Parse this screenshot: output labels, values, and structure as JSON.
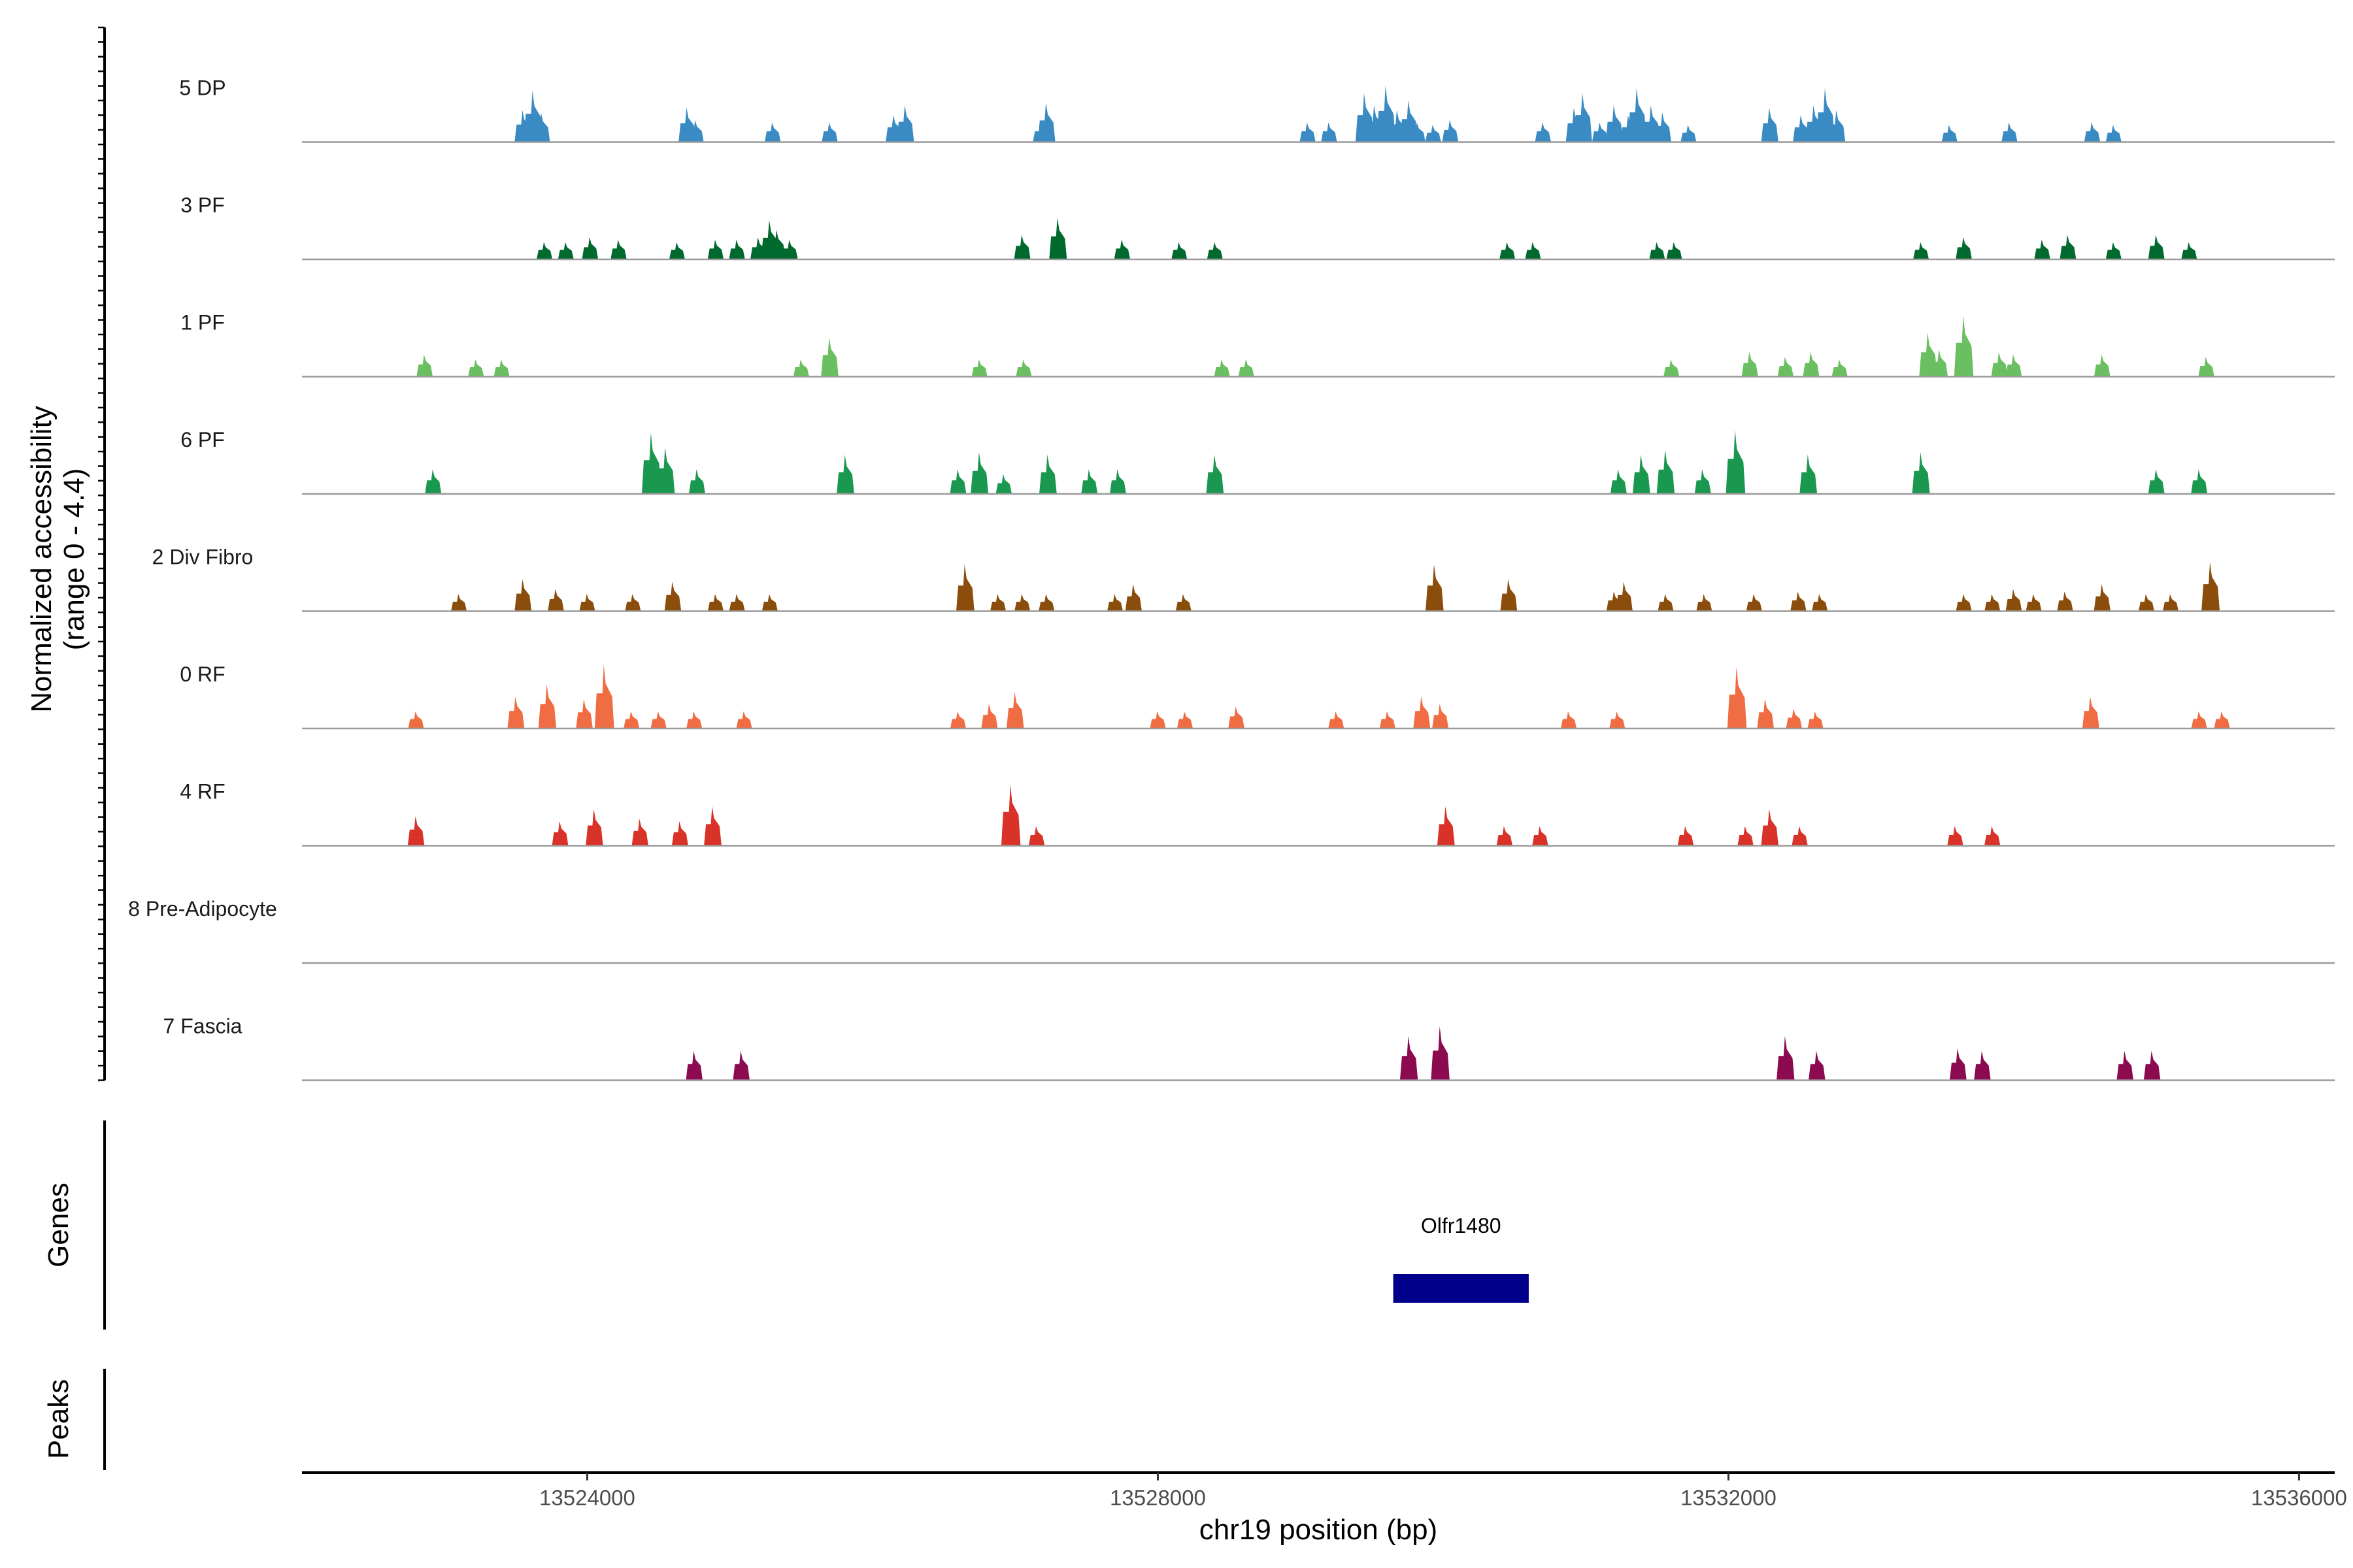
{
  "chart_data": {
    "type": "area",
    "title": "",
    "xlabel": "chr19 position (bp)",
    "ylabel_lines": [
      "Normalized accessibility",
      "(range 0 - 4.4)"
    ],
    "panel_labels": {
      "genes": "Genes",
      "peaks": "Peaks"
    },
    "xlim": [
      13522000,
      13536250
    ],
    "ylim": [
      0,
      4.4
    ],
    "x_ticks": [
      13524000,
      13528000,
      13532000,
      13536000
    ],
    "x_tick_labels": [
      "13524000",
      "13528000",
      "13532000",
      "13536000"
    ],
    "gene": {
      "name": "Olfr1480",
      "start": 13529650,
      "end": 13530600,
      "color": "#00008b"
    },
    "tracks": [
      {
        "name": "5 DP",
        "color": "#3a8bc4",
        "peaks": [
          [
            13523550,
            1.3
          ],
          [
            13523620,
            2.1
          ],
          [
            13523680,
            1.2
          ],
          [
            13524700,
            1.4
          ],
          [
            13524760,
            0.9
          ],
          [
            13525300,
            0.8
          ],
          [
            13525700,
            0.8
          ],
          [
            13526150,
            1.1
          ],
          [
            13526230,
            1.5
          ],
          [
            13527180,
            0.8
          ],
          [
            13527220,
            1.6
          ],
          [
            13529050,
            0.8
          ],
          [
            13529200,
            0.8
          ],
          [
            13529450,
            2.0
          ],
          [
            13529520,
            1.5
          ],
          [
            13529600,
            2.3
          ],
          [
            13529680,
            1.3
          ],
          [
            13529760,
            1.7
          ],
          [
            13529820,
            0.8
          ],
          [
            13529930,
            0.7
          ],
          [
            13530050,
            0.9
          ],
          [
            13530700,
            0.8
          ],
          [
            13530920,
            1.4
          ],
          [
            13530980,
            2.0
          ],
          [
            13531100,
            0.8
          ],
          [
            13531200,
            1.5
          ],
          [
            13531300,
            1.1
          ],
          [
            13531360,
            2.2
          ],
          [
            13531460,
            1.5
          ],
          [
            13531540,
            1.2
          ],
          [
            13531720,
            0.7
          ],
          [
            13532290,
            1.4
          ],
          [
            13532510,
            1.1
          ],
          [
            13532600,
            1.5
          ],
          [
            13532680,
            2.2
          ],
          [
            13532760,
            1.3
          ],
          [
            13533550,
            0.7
          ],
          [
            13533970,
            0.8
          ],
          [
            13534550,
            0.8
          ],
          [
            13534700,
            0.7
          ]
        ]
      },
      {
        "name": "3 PF",
        "color": "#00692e",
        "peaks": [
          [
            13523700,
            0.7
          ],
          [
            13523850,
            0.7
          ],
          [
            13524020,
            0.9
          ],
          [
            13524220,
            0.8
          ],
          [
            13524630,
            0.7
          ],
          [
            13524900,
            0.8
          ],
          [
            13525050,
            0.8
          ],
          [
            13525200,
            0.9
          ],
          [
            13525280,
            1.6
          ],
          [
            13525330,
            1.2
          ],
          [
            13525420,
            0.8
          ],
          [
            13527050,
            1.0
          ],
          [
            13527300,
            1.7
          ],
          [
            13527750,
            0.8
          ],
          [
            13528150,
            0.7
          ],
          [
            13528400,
            0.7
          ],
          [
            13530450,
            0.7
          ],
          [
            13530630,
            0.7
          ],
          [
            13531500,
            0.7
          ],
          [
            13531620,
            0.7
          ],
          [
            13533350,
            0.7
          ],
          [
            13533650,
            0.9
          ],
          [
            13534200,
            0.8
          ],
          [
            13534380,
            1.0
          ],
          [
            13534700,
            0.7
          ],
          [
            13535000,
            1.0
          ],
          [
            13535230,
            0.7
          ]
        ]
      },
      {
        "name": "1 PF",
        "color": "#6abf60",
        "peaks": [
          [
            13522860,
            0.9
          ],
          [
            13523220,
            0.7
          ],
          [
            13523400,
            0.7
          ],
          [
            13525500,
            0.7
          ],
          [
            13525700,
            1.6
          ],
          [
            13526750,
            0.7
          ],
          [
            13527060,
            0.7
          ],
          [
            13528450,
            0.7
          ],
          [
            13528620,
            0.7
          ],
          [
            13531600,
            0.7
          ],
          [
            13532150,
            1.0
          ],
          [
            13532400,
            0.8
          ],
          [
            13532580,
            1.0
          ],
          [
            13532780,
            0.7
          ],
          [
            13533400,
            1.8
          ],
          [
            13533480,
            1.1
          ],
          [
            13533650,
            2.5
          ],
          [
            13533900,
            1.0
          ],
          [
            13534000,
            0.9
          ],
          [
            13534620,
            0.9
          ],
          [
            13535350,
            0.8
          ]
        ]
      },
      {
        "name": "6 PF",
        "color": "#1b9850",
        "peaks": [
          [
            13522920,
            1.0
          ],
          [
            13524450,
            2.5
          ],
          [
            13524480,
            1.5
          ],
          [
            13524550,
            1.9
          ],
          [
            13524770,
            1.0
          ],
          [
            13525810,
            1.6
          ],
          [
            13526600,
            1.0
          ],
          [
            13526750,
            1.7
          ],
          [
            13526920,
            0.8
          ],
          [
            13527230,
            1.6
          ],
          [
            13527520,
            1.0
          ],
          [
            13527720,
            1.0
          ],
          [
            13528400,
            1.6
          ],
          [
            13531230,
            1.0
          ],
          [
            13531390,
            1.6
          ],
          [
            13531560,
            1.8
          ],
          [
            13531820,
            1.0
          ],
          [
            13532050,
            2.6
          ],
          [
            13532560,
            1.6
          ],
          [
            13533350,
            1.7
          ],
          [
            13535000,
            1.0
          ],
          [
            13535300,
            1.0
          ]
        ]
      },
      {
        "name": "2 Div Fibro",
        "color": "#8b4d0c",
        "peaks": [
          [
            13523100,
            0.7
          ],
          [
            13523550,
            1.3
          ],
          [
            13523780,
            0.9
          ],
          [
            13524000,
            0.7
          ],
          [
            13524320,
            0.7
          ],
          [
            13524600,
            1.2
          ],
          [
            13524900,
            0.7
          ],
          [
            13525050,
            0.7
          ],
          [
            13525280,
            0.7
          ],
          [
            13526650,
            1.9
          ],
          [
            13526880,
            0.7
          ],
          [
            13527050,
            0.7
          ],
          [
            13527220,
            0.7
          ],
          [
            13527700,
            0.7
          ],
          [
            13527830,
            1.1
          ],
          [
            13528180,
            0.7
          ],
          [
            13529940,
            1.9
          ],
          [
            13530460,
            1.3
          ],
          [
            13531200,
            0.8
          ],
          [
            13531270,
            1.2
          ],
          [
            13531560,
            0.7
          ],
          [
            13531830,
            0.7
          ],
          [
            13532180,
            0.7
          ],
          [
            13532490,
            0.8
          ],
          [
            13532640,
            0.7
          ],
          [
            13533650,
            0.7
          ],
          [
            13533850,
            0.7
          ],
          [
            13534000,
            0.9
          ],
          [
            13534140,
            0.7
          ],
          [
            13534360,
            0.8
          ],
          [
            13534620,
            1.1
          ],
          [
            13534930,
            0.7
          ],
          [
            13535100,
            0.7
          ],
          [
            13535380,
            2.0
          ]
        ]
      },
      {
        "name": "0 RF",
        "color": "#f06d43",
        "peaks": [
          [
            13522800,
            0.7
          ],
          [
            13523500,
            1.3
          ],
          [
            13523720,
            1.8
          ],
          [
            13523980,
            1.2
          ],
          [
            13524120,
            2.6
          ],
          [
            13524310,
            0.7
          ],
          [
            13524500,
            0.7
          ],
          [
            13524750,
            0.7
          ],
          [
            13525100,
            0.7
          ],
          [
            13526600,
            0.7
          ],
          [
            13526820,
            1.0
          ],
          [
            13527000,
            1.5
          ],
          [
            13528000,
            0.7
          ],
          [
            13528190,
            0.7
          ],
          [
            13528550,
            0.9
          ],
          [
            13529250,
            0.7
          ],
          [
            13529610,
            0.7
          ],
          [
            13529850,
            1.3
          ],
          [
            13529980,
            1.0
          ],
          [
            13530880,
            0.7
          ],
          [
            13531220,
            0.7
          ],
          [
            13532060,
            2.5
          ],
          [
            13532260,
            1.2
          ],
          [
            13532460,
            0.8
          ],
          [
            13532610,
            0.7
          ],
          [
            13534540,
            1.3
          ],
          [
            13535300,
            0.7
          ],
          [
            13535460,
            0.7
          ]
        ]
      },
      {
        "name": "4 RF",
        "color": "#d93228",
        "peaks": [
          [
            13522800,
            1.2
          ],
          [
            13523810,
            1.0
          ],
          [
            13524050,
            1.5
          ],
          [
            13524370,
            1.1
          ],
          [
            13524650,
            1.0
          ],
          [
            13524880,
            1.6
          ],
          [
            13526970,
            2.5
          ],
          [
            13527150,
            0.8
          ],
          [
            13530020,
            1.6
          ],
          [
            13530430,
            0.8
          ],
          [
            13530680,
            0.8
          ],
          [
            13531700,
            0.8
          ],
          [
            13532120,
            0.8
          ],
          [
            13532290,
            1.5
          ],
          [
            13532500,
            0.8
          ],
          [
            13533590,
            0.8
          ],
          [
            13533850,
            0.8
          ]
        ]
      },
      {
        "name": "8 Pre-Adipocyte",
        "color": "#c94f2a",
        "peaks": []
      },
      {
        "name": "7 Fascia",
        "color": "#8b0a50",
        "peaks": [
          [
            13524750,
            1.2
          ],
          [
            13525080,
            1.2
          ],
          [
            13529760,
            1.8
          ],
          [
            13529980,
            2.2
          ],
          [
            13532400,
            1.8
          ],
          [
            13532620,
            1.2
          ],
          [
            13533610,
            1.3
          ],
          [
            13533780,
            1.2
          ],
          [
            13534780,
            1.2
          ],
          [
            13534970,
            1.2
          ]
        ]
      }
    ]
  }
}
